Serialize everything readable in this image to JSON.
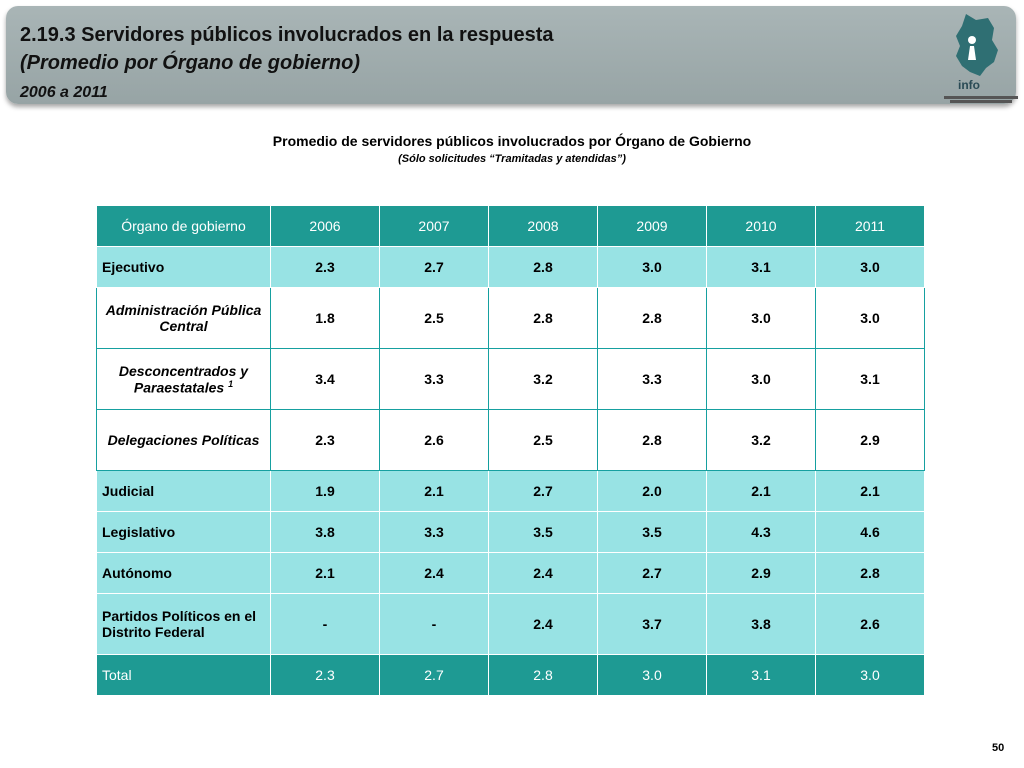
{
  "header": {
    "title": "2.19.3 Servidores públicos involucrados en la respuesta",
    "subtitle": "(Promedio por Órgano de gobierno)",
    "period": "2006 a 2011"
  },
  "logo": {
    "word": "info",
    "icon": "mexico-city-map-icon"
  },
  "table": {
    "caption": "Promedio de servidores públicos involucrados por Órgano de Gobierno",
    "note": "(Sólo solicitudes “Tramitadas y atendidas”)",
    "headers": [
      "Órgano de gobierno",
      "2006",
      "2007",
      "2008",
      "2009",
      "2010",
      "2011"
    ],
    "rows": [
      {
        "label": "Ejecutivo",
        "values": [
          "2.3",
          "2.7",
          "2.8",
          "3.0",
          "3.1",
          "3.0"
        ]
      },
      {
        "label": "Administración Pública Central",
        "values": [
          "1.8",
          "2.5",
          "2.8",
          "2.8",
          "3.0",
          "3.0"
        ]
      },
      {
        "label": "Desconcentrados y Paraestatales",
        "footnote": "1",
        "values": [
          "3.4",
          "3.3",
          "3.2",
          "3.3",
          "3.0",
          "3.1"
        ]
      },
      {
        "label": "Delegaciones Políticas",
        "values": [
          "2.3",
          "2.6",
          "2.5",
          "2.8",
          "3.2",
          "2.9"
        ]
      },
      {
        "label": "Judicial",
        "values": [
          "1.9",
          "2.1",
          "2.7",
          "2.0",
          "2.1",
          "2.1"
        ]
      },
      {
        "label": "Legislativo",
        "values": [
          "3.8",
          "3.3",
          "3.5",
          "3.5",
          "4.3",
          "4.6"
        ]
      },
      {
        "label": "Autónomo",
        "values": [
          "2.1",
          "2.4",
          "2.4",
          "2.7",
          "2.9",
          "2.8"
        ]
      },
      {
        "label": "Partidos Políticos en el Distrito Federal",
        "values": [
          "-",
          "-",
          "2.4",
          "3.7",
          "3.8",
          "2.6"
        ]
      },
      {
        "label": "Total",
        "values": [
          "2.3",
          "2.7",
          "2.8",
          "3.0",
          "3.1",
          "3.0"
        ]
      }
    ]
  },
  "colors": {
    "header": "#1e9a93",
    "main_row": "#98e3e4",
    "banner": "#a0adae"
  },
  "page_number": "50"
}
